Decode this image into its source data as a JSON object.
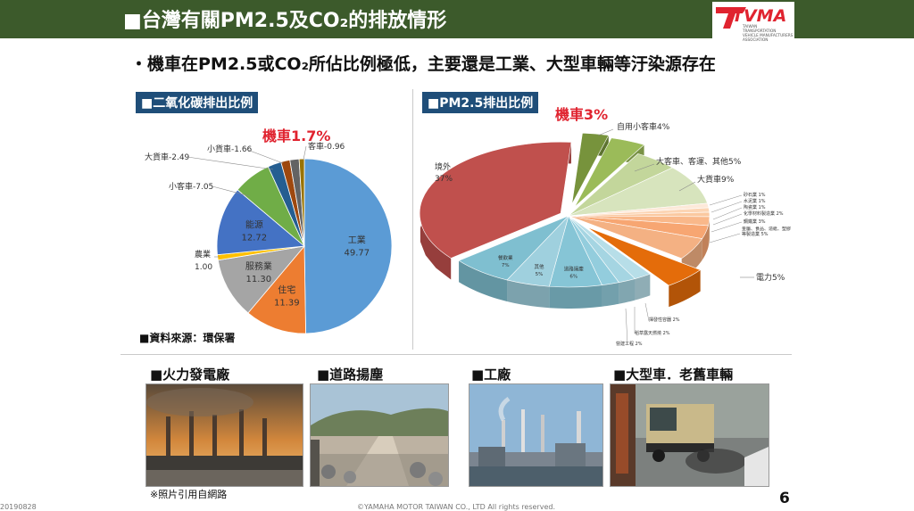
{
  "header": {
    "title": "■台灣有關PM2.5及CO₂的排放情形",
    "logo_text": "TVMA",
    "logo_subtext": [
      "TAIWAN",
      "TRANSPORTATION",
      "VEHICLE MANUFACTURERS",
      "ASSOCIATION"
    ]
  },
  "subtitle": "・機車在PM2.5或CO₂所佔比例極低，主要還是工業、大型車輛等汙染源存在",
  "colors": {
    "header_bg": "#3c5a2b",
    "tag_bg": "#1f4e79",
    "highlight_red": "#e0232f"
  },
  "chart_data": [
    {
      "type": "pie",
      "tag": "■二氧化碳排出比例",
      "highlight": "機車1.7%",
      "source": "■資料來源：環保署",
      "slices": [
        {
          "name": "工業",
          "value": 49.77,
          "label_value": "49.77",
          "color": "#5b9bd5"
        },
        {
          "name": "住宅",
          "value": 11.39,
          "label_value": "11.39",
          "color": "#ed7d31"
        },
        {
          "name": "服務業",
          "value": 11.3,
          "label_value": "11.30",
          "color": "#a5a5a5"
        },
        {
          "name": "農業",
          "value": 1.0,
          "label_value": "1.00",
          "color": "#ffc000"
        },
        {
          "name": "能源",
          "value": 12.72,
          "label_value": "12.72",
          "color": "#4472c4"
        },
        {
          "name": "小客車",
          "value": 7.05,
          "label_value": "小客車-7.05",
          "color": "#70ad47"
        },
        {
          "name": "大貨車",
          "value": 2.49,
          "label_value": "大貨車-2.49",
          "color": "#255e91"
        },
        {
          "name": "小貨車",
          "value": 1.66,
          "label_value": "小貨車-1.66",
          "color": "#9e480e"
        },
        {
          "name": "機車",
          "value": 1.7,
          "label_value": "",
          "color": "#636363"
        },
        {
          "name": "客車",
          "value": 0.96,
          "label_value": "客車-0.96",
          "color": "#997300"
        }
      ]
    },
    {
      "type": "pie",
      "tag": "■PM2.5排出比例",
      "highlight": "機車3%",
      "slices": [
        {
          "name": "境外",
          "value": 37,
          "label": "境外",
          "label_value": "37%",
          "color": "#c0504d"
        },
        {
          "name": "機車",
          "value": 3,
          "label": "",
          "label_value": "",
          "color": "#77933c"
        },
        {
          "name": "自用小客車",
          "value": 4,
          "label": "自用小客車4%",
          "label_value": "",
          "color": "#9bbb59"
        },
        {
          "name": "大客車、客運、其他",
          "value": 5,
          "label": "大客車、客運、其他5%",
          "label_value": "",
          "color": "#c3d69b"
        },
        {
          "name": "大貨車",
          "value": 9,
          "label": "大貨車9%",
          "label_value": "",
          "color": "#d7e4bd"
        },
        {
          "name": "砂石業",
          "value": 1,
          "label": "砂石業 1%",
          "label_value": "",
          "color": "#fde9d9"
        },
        {
          "name": "水泥業",
          "value": 1,
          "label": "水泥業 1%",
          "label_value": "",
          "color": "#fcd5b4"
        },
        {
          "name": "陶瓷業",
          "value": 1,
          "label": "陶瓷業 1%",
          "label_value": "",
          "color": "#fbc9a0"
        },
        {
          "name": "化學材料製造業",
          "value": 2,
          "label": "化學材料製造業 2%",
          "label_value": "",
          "color": "#f9b88a"
        },
        {
          "name": "鋼鐵業",
          "value": 3,
          "label": "鋼鐵業 3%",
          "label_value": "",
          "color": "#f7a672"
        },
        {
          "name": "金屬、食品、造紙、塑膠等製造業",
          "value": 5,
          "label": "金屬、食品、造紙、塑膠等製造業 5%",
          "label_value": "",
          "color": "#f4b183"
        },
        {
          "name": "電力",
          "value": 5,
          "label": "電力5%",
          "label_value": "",
          "color": "#e46c0a"
        },
        {
          "name": "營建工程",
          "value": 2,
          "label": "營建工程 2%",
          "label_value": "",
          "color": "#b7dee8"
        },
        {
          "name": "稻草露天燃燒",
          "value": 2,
          "label": "稻草露天燃燒 2%",
          "label_value": "",
          "color": "#a5d5e2"
        },
        {
          "name": "揮發性容器",
          "value": 2,
          "label": "揮發性容器 2%",
          "label_value": "",
          "color": "#93cddd"
        },
        {
          "name": "道路揚塵",
          "value": 6,
          "label": "道路揚塵",
          "label_value": "6%",
          "color": "#86c5d6"
        },
        {
          "name": "其他",
          "value": 5,
          "label": "其他",
          "label_value": "5%",
          "color": "#9fd0de"
        },
        {
          "name": "餐飲業",
          "value": 7,
          "label": "餐飲業",
          "label_value": "7%",
          "color": "#7fbfd0"
        }
      ]
    }
  ],
  "photos": [
    {
      "title": "■火力發電廠"
    },
    {
      "title": "■道路揚塵"
    },
    {
      "title": "■工廠"
    },
    {
      "title": "■大型車．老舊車輛"
    }
  ],
  "photo_note": "※照片引用自網路",
  "footer": {
    "date": "20190828",
    "copyright": "©YAMAHA MOTOR TAIWAN CO., LTD All rights reserved.",
    "page_number": "6"
  }
}
